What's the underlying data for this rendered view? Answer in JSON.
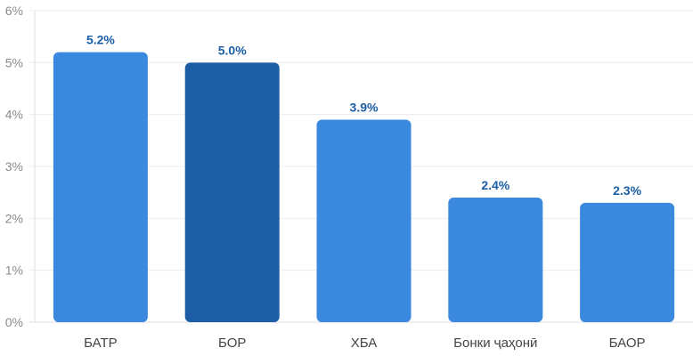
{
  "chart_data": {
    "type": "bar",
    "title": "",
    "xlabel": "",
    "ylabel": "",
    "categories": [
      "БАТР",
      "БОР",
      "ХБА",
      "Бонки ҷаҳонӣ",
      "БАОР"
    ],
    "values": [
      5.2,
      5.0,
      3.9,
      2.4,
      2.3
    ],
    "data_labels": [
      "5.2%",
      "5.0%",
      "3.9%",
      "2.4%",
      "2.3%"
    ],
    "highlighted_index": 1,
    "ylim": [
      0,
      6
    ],
    "yticks": [
      0,
      1,
      2,
      3,
      4,
      5,
      6
    ],
    "ytick_labels": [
      "0%",
      "1%",
      "2%",
      "3%",
      "4%",
      "5%",
      "6%"
    ],
    "grid": true,
    "colors": {
      "bar": "#3a89de",
      "highlight": "#1b5ea6",
      "label": "#1b5ea6",
      "tick": "#8a8a8a",
      "category": "#444444",
      "grid": "#ececf0"
    }
  }
}
